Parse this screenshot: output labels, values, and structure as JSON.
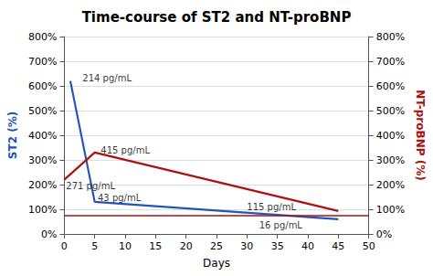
{
  "chart_data": {
    "type": "line",
    "title": "Time-course of ST2 and NT-proBNP",
    "xlabel": "Days",
    "ylabel": "ST2 (%)",
    "y2label": "NT-proBNP (%)",
    "series": [
      {
        "color": "#2255BB",
        "x": [
          1,
          5,
          45
        ],
        "values": [
          620,
          130,
          60
        ]
      },
      {
        "color": "#AA1111",
        "x": [
          0,
          5,
          45
        ],
        "values": [
          220,
          330,
          93
        ],
        "axis": "y2"
      }
    ],
    "hlines": [
      {
        "value": 75,
        "color": "#AA1111"
      }
    ],
    "annotations": [
      {
        "x": 3,
        "y": 630,
        "text": "214 pg/mL"
      },
      {
        "x": 5.5,
        "y": 148,
        "text": "43 pg/mL"
      },
      {
        "x": 32,
        "y": 35,
        "text": "16 pg/mL"
      },
      {
        "x": 0.3,
        "y": 195,
        "text": "271 pg/mL"
      },
      {
        "x": 6,
        "y": 338,
        "text": "415 pg/mL"
      },
      {
        "x": 30,
        "y": 108,
        "text": "115 pg/mL"
      }
    ],
    "xlim": [
      0,
      50
    ],
    "xticks": [
      0,
      5,
      10,
      15,
      20,
      25,
      30,
      35,
      40,
      45,
      50
    ],
    "ylim": [
      0,
      800
    ],
    "yticks": [
      {
        "value": 0,
        "label": "0%"
      },
      {
        "value": 100,
        "label": "100%"
      },
      {
        "value": 200,
        "label": "200%"
      },
      {
        "value": 300,
        "label": "300%"
      },
      {
        "value": 400,
        "label": "400%"
      },
      {
        "value": 500,
        "label": "500%"
      },
      {
        "value": 600,
        "label": "600%"
      },
      {
        "value": 700,
        "label": "700%"
      },
      {
        "value": 800,
        "label": "800%"
      }
    ],
    "y2lim": [
      0,
      800
    ],
    "y2ticks": [
      {
        "value": 0,
        "label": "0%"
      },
      {
        "value": 100,
        "label": "100%"
      },
      {
        "value": 200,
        "label": "200%"
      },
      {
        "value": 300,
        "label": "300%"
      },
      {
        "value": 400,
        "label": "400%"
      },
      {
        "value": 500,
        "label": "500%"
      },
      {
        "value": 600,
        "label": "600%"
      },
      {
        "value": 700,
        "label": "700%"
      },
      {
        "value": 800,
        "label": "800%"
      }
    ],
    "grid": true
  }
}
